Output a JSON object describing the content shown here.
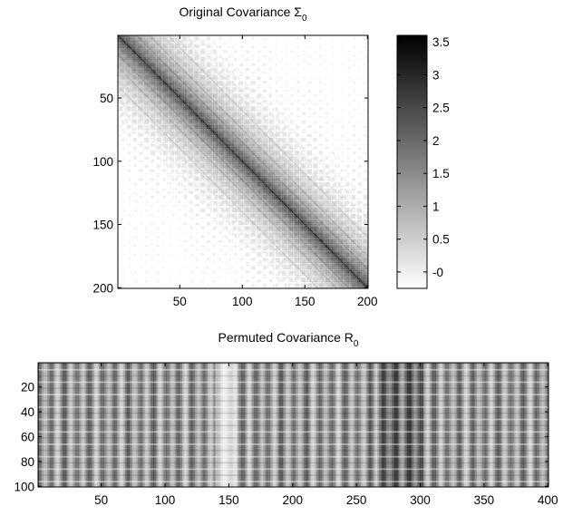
{
  "chart_data": [
    {
      "type": "heatmap",
      "title_main": "Original Covariance Σ",
      "title_sub": "0",
      "rows": 200,
      "cols": 200,
      "xlim": [
        1,
        200
      ],
      "ylim": [
        1,
        200
      ],
      "xticks": [
        50,
        100,
        150,
        200
      ],
      "yticks": [
        50,
        100,
        150,
        200
      ],
      "colormap": "gray-reversed",
      "structure": "block-banded covariance: strong main diagonal plus parallel bands at offsets of about 15, 25 and 40, values decaying away from the diagonal, periodic 5-index texture",
      "colorbar": {
        "range": [
          -0.25,
          3.6
        ],
        "ticks": [
          "-0",
          "0.5",
          "1",
          "1.5",
          "2",
          "2.5",
          "3",
          "3.5"
        ],
        "tick_values": [
          0,
          0.5,
          1,
          1.5,
          2,
          2.5,
          3,
          3.5
        ]
      }
    },
    {
      "type": "heatmap",
      "title_main": "Permuted Covariance R",
      "title_sub": "0",
      "rows": 100,
      "cols": 400,
      "xlim": [
        1,
        400
      ],
      "ylim": [
        1,
        100
      ],
      "xticks": [
        50,
        100,
        150,
        200,
        250,
        300,
        350,
        400
      ],
      "yticks": [
        20,
        40,
        60,
        80,
        100
      ],
      "colormap": "gray-reversed",
      "structure": "vertical stripes with period about 10 columns, horizontal bands every 10 rows, lighter gap near column 140-155, darker stripes near columns 270-300"
    }
  ],
  "colors": {
    "background": "#ffffff",
    "axes": "#000000",
    "low_value": "#ffffff",
    "high_value": "#000000"
  }
}
